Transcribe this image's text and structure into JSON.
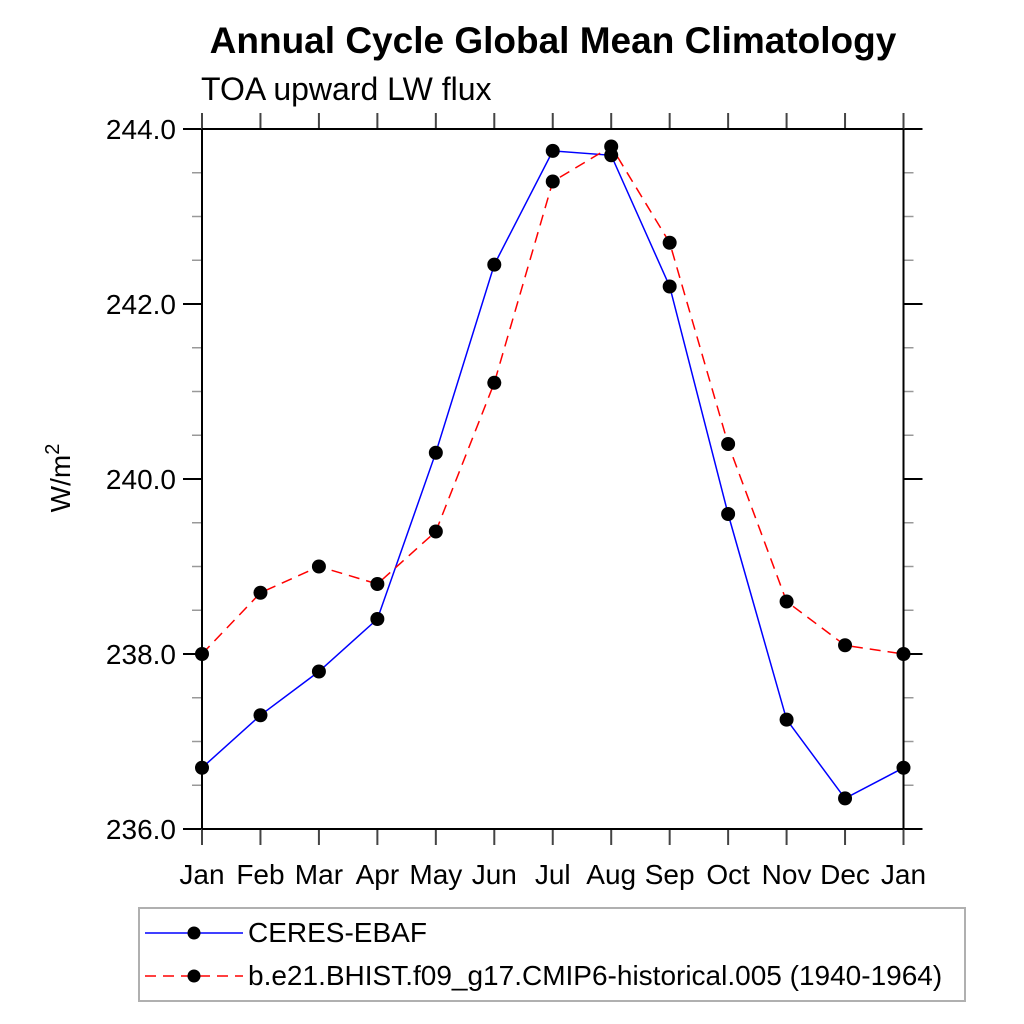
{
  "chart_data": {
    "type": "line",
    "title": "Annual Cycle Global Mean Climatology",
    "subtitle": "TOA upward LW flux",
    "ylabel": {
      "text": "W/m",
      "superscript": "2"
    },
    "categories": [
      "Jan",
      "Feb",
      "Mar",
      "Apr",
      "May",
      "Jun",
      "Jul",
      "Aug",
      "Sep",
      "Oct",
      "Nov",
      "Dec",
      "Jan"
    ],
    "ylim": [
      236.0,
      244.0
    ],
    "yticks": [
      {
        "value": 236.0,
        "label": "236.0"
      },
      {
        "value": 238.0,
        "label": "238.0"
      },
      {
        "value": 240.0,
        "label": "240.0"
      },
      {
        "value": 242.0,
        "label": "242.0"
      },
      {
        "value": 244.0,
        "label": "244.0"
      }
    ],
    "ytick_minor_step": 0.5,
    "grid": false,
    "legend_position": "bottom-left",
    "marker": {
      "shape": "circle",
      "color": "#000000"
    },
    "axis_color": "#000000",
    "series": [
      {
        "name": "CERES-EBAF",
        "color": "#0000ff",
        "line_style": "solid",
        "values": [
          236.7,
          237.3,
          237.8,
          238.4,
          240.3,
          242.45,
          243.75,
          243.7,
          242.2,
          239.6,
          237.25,
          236.35,
          236.7
        ]
      },
      {
        "name": "b.e21.BHIST.f09_g17.CMIP6-historical.005 (1940-1964)",
        "color": "#ff0000",
        "line_style": "dashed",
        "values": [
          238.0,
          238.7,
          239.0,
          238.8,
          239.4,
          241.1,
          243.4,
          243.8,
          242.7,
          240.4,
          238.6,
          238.1,
          238.0
        ]
      }
    ]
  }
}
